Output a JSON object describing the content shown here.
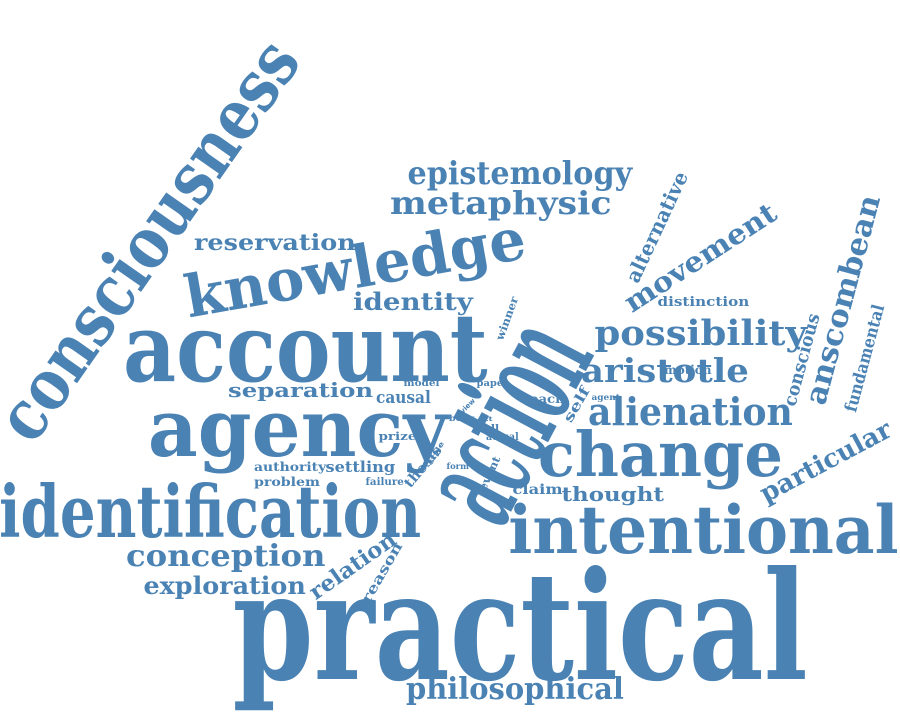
{
  "color": "#4a82b4",
  "background": "#ffffff",
  "words": [
    "practical",
    "action",
    "account",
    "consciousness",
    "identification",
    "agency",
    "intentional",
    "change",
    "knowledge",
    "epistemology",
    "metaphysic",
    "alienation",
    "possibility",
    "aristotle",
    "movement",
    "anscombean",
    "philosophical",
    "conception",
    "exploration",
    "particular",
    "reservation",
    "identity",
    "separation",
    "alternative",
    "fundamental",
    "conscious",
    "causal",
    "relation",
    "thought",
    "distinction",
    "authority",
    "settling",
    "problem",
    "claim",
    "motion",
    "reason",
    "prize",
    "thesis",
    "failure",
    "self",
    "winner",
    "reach",
    "event",
    "actual",
    "call",
    "model",
    "paper",
    "agent",
    "body",
    "view",
    "style",
    "form",
    "act"
  ]
}
